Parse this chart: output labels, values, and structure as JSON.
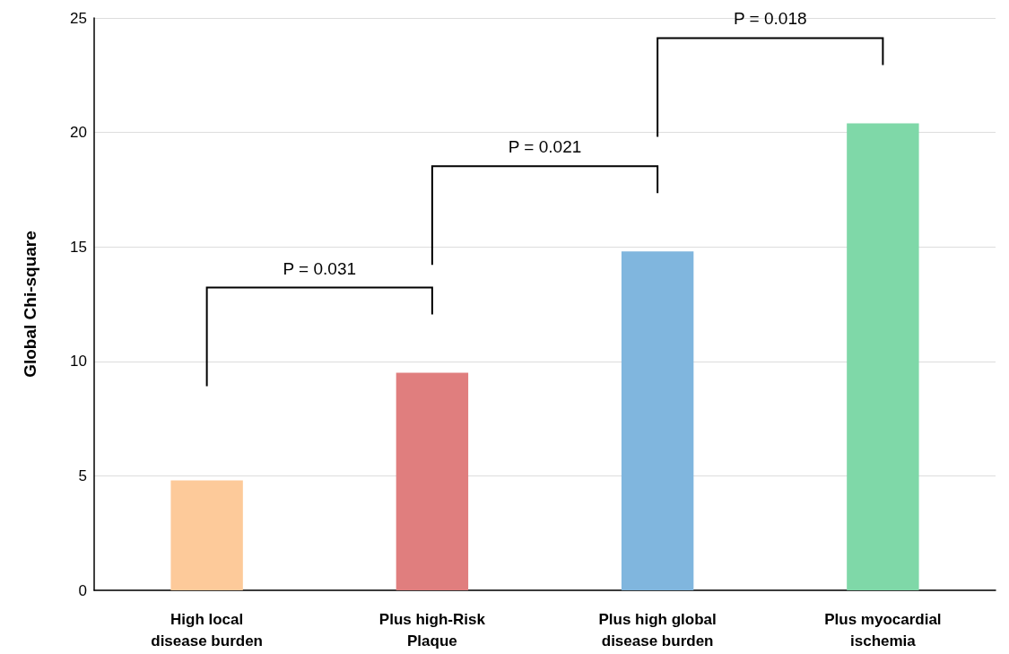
{
  "chart_data": {
    "type": "bar",
    "ylabel": "Global Chi-square",
    "categories": [
      "High local\ndisease burden",
      "Plus high-Risk\nPlaque",
      "Plus high global\ndisease burden",
      "Plus myocardial\nischemia"
    ],
    "values": [
      4.8,
      9.5,
      14.8,
      20.4
    ],
    "colors": [
      "#fdca9a",
      "#e07e7e",
      "#80b6de",
      "#7fd8a8"
    ],
    "ylim": [
      0,
      25
    ],
    "yticks": [
      0,
      5,
      10,
      15,
      20,
      25
    ],
    "grid": "y",
    "annotations": [
      "P = 0.031",
      "P = 0.021",
      "P = 0.018"
    ]
  }
}
